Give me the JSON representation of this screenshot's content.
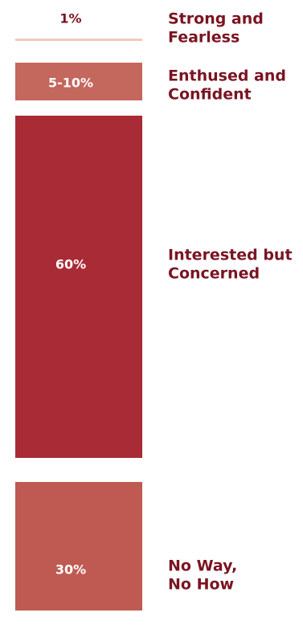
{
  "chart_data": {
    "type": "bar",
    "orientation": "stacked-column",
    "categories": [
      "Strong and Fearless",
      "Enthused and Confident",
      "Interested but Concerned",
      "No Way, No How"
    ],
    "value_labels": [
      "1%",
      "5-10%",
      "60%",
      "30%"
    ],
    "values": [
      1,
      7.5,
      60,
      30
    ],
    "label_lines": [
      [
        "Strong and",
        "Fearless"
      ],
      [
        "Enthused and",
        "Confident"
      ],
      [
        "Interested but",
        "Concerned"
      ],
      [
        "No Way,",
        "No How"
      ]
    ],
    "label_color": "#7a1422",
    "colors": [
      "#f0c9c0",
      "#c4675d",
      "#a82b35",
      "#bf5a52"
    ],
    "value_text_colors": [
      "#7a1422",
      "#ffffff",
      "#ffffff",
      "#ffffff"
    ]
  }
}
